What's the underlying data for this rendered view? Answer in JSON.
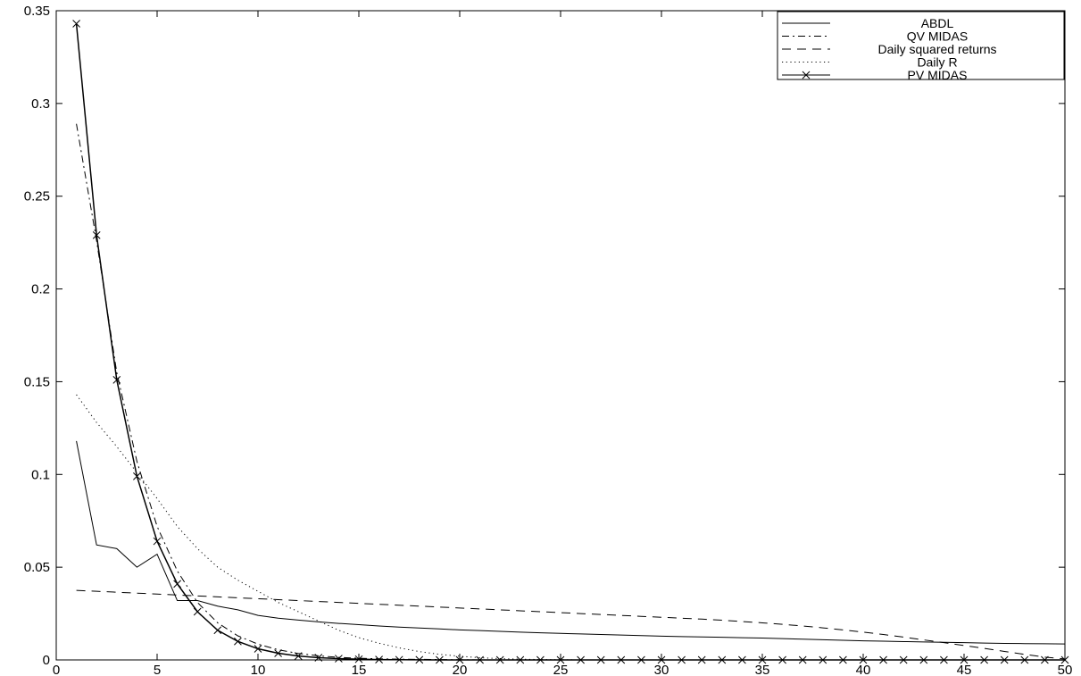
{
  "chart_data": {
    "type": "line",
    "title": "",
    "xlabel": "",
    "ylabel": "",
    "xlim": [
      0,
      50
    ],
    "ylim": [
      0,
      0.35
    ],
    "xticks": [
      0,
      5,
      10,
      15,
      20,
      25,
      30,
      35,
      40,
      45,
      50
    ],
    "yticks": [
      0,
      0.05,
      0.1,
      0.15,
      0.2,
      0.25,
      0.3,
      0.35
    ],
    "xtick_labels": [
      "0",
      "5",
      "10",
      "15",
      "20",
      "25",
      "30",
      "35",
      "40",
      "45",
      "50"
    ],
    "ytick_labels": [
      "0",
      "0.05",
      "0.1",
      "0.15",
      "0.2",
      "0.25",
      "0.3",
      "0.35"
    ],
    "grid": false,
    "legend_position": "top-right",
    "x": [
      1,
      2,
      3,
      4,
      5,
      6,
      7,
      8,
      9,
      10,
      11,
      12,
      13,
      14,
      15,
      16,
      17,
      18,
      19,
      20,
      21,
      22,
      23,
      24,
      25,
      26,
      27,
      28,
      29,
      30,
      31,
      32,
      33,
      34,
      35,
      36,
      37,
      38,
      39,
      40,
      41,
      42,
      43,
      44,
      45,
      46,
      47,
      48,
      49,
      50
    ],
    "series": [
      {
        "name": "ABDL",
        "style": "solid",
        "marker": "none",
        "values": [
          0.118,
          0.062,
          0.06,
          0.05,
          0.057,
          0.032,
          0.032,
          0.029,
          0.027,
          0.024,
          0.0225,
          0.0215,
          0.0205,
          0.0197,
          0.019,
          0.0183,
          0.0177,
          0.0172,
          0.0167,
          0.0162,
          0.0158,
          0.0154,
          0.015,
          0.0146,
          0.0143,
          0.014,
          0.0137,
          0.0134,
          0.0131,
          0.0128,
          0.0126,
          0.0124,
          0.0122,
          0.012,
          0.0118,
          0.0115,
          0.0112,
          0.0109,
          0.0106,
          0.0103,
          0.0101,
          0.0099,
          0.0097,
          0.0095,
          0.0093,
          0.0091,
          0.0089,
          0.0088,
          0.0087,
          0.0086
        ]
      },
      {
        "name": "QV MIDAS",
        "style": "dashdot",
        "marker": "none",
        "values": [
          0.289,
          0.226,
          0.155,
          0.107,
          0.072,
          0.048,
          0.031,
          0.02,
          0.013,
          0.0085,
          0.0055,
          0.0035,
          0.0022,
          0.0014,
          0.0009,
          0.0006,
          0.0004,
          0.0003,
          0.0002,
          0.0001,
          0,
          0,
          0,
          0,
          0,
          0,
          0,
          0,
          0,
          0,
          0,
          0,
          0,
          0,
          0,
          0,
          0,
          0,
          0,
          0,
          0,
          0,
          0,
          0,
          0,
          0,
          0,
          0,
          0,
          0
        ]
      },
      {
        "name": "Daily squared returns",
        "style": "dashed",
        "marker": "none",
        "values": [
          0.0375,
          0.037,
          0.0365,
          0.036,
          0.0355,
          0.035,
          0.0345,
          0.034,
          0.0335,
          0.033,
          0.0325,
          0.032,
          0.0315,
          0.031,
          0.0305,
          0.03,
          0.0295,
          0.029,
          0.0285,
          0.028,
          0.0275,
          0.027,
          0.0265,
          0.026,
          0.0255,
          0.025,
          0.0245,
          0.024,
          0.0235,
          0.023,
          0.0225,
          0.022,
          0.0214,
          0.0207,
          0.02,
          0.0192,
          0.0183,
          0.0173,
          0.0162,
          0.015,
          0.0137,
          0.0123,
          0.0108,
          0.0093,
          0.0078,
          0.0062,
          0.0046,
          0.003,
          0.0015,
          0.0005
        ]
      },
      {
        "name": "Daily R",
        "style": "dotted",
        "marker": "none",
        "values": [
          0.143,
          0.128,
          0.115,
          0.101,
          0.087,
          0.072,
          0.06,
          0.05,
          0.043,
          0.037,
          0.031,
          0.026,
          0.021,
          0.016,
          0.012,
          0.009,
          0.0065,
          0.0045,
          0.003,
          0.002,
          0.0012,
          0.0007,
          0.0004,
          0.0002,
          0.0001,
          0,
          0,
          0,
          0,
          0,
          0,
          0,
          0,
          0,
          0,
          0,
          0,
          0,
          0,
          0,
          0,
          0,
          0,
          0,
          0,
          0,
          0,
          0,
          0,
          0
        ]
      },
      {
        "name": "PV MIDAS",
        "style": "solid",
        "marker": "x",
        "values": [
          0.343,
          0.229,
          0.151,
          0.099,
          0.064,
          0.041,
          0.026,
          0.016,
          0.01,
          0.006,
          0.0036,
          0.0021,
          0.0012,
          0.0007,
          0.0004,
          0.0002,
          0.0001,
          5e-05,
          0,
          0,
          0,
          0,
          0,
          0,
          0,
          0,
          0,
          0,
          0,
          0,
          0,
          0,
          0,
          0,
          0,
          0,
          0,
          0,
          0,
          0,
          0,
          0,
          0,
          0,
          0,
          0,
          0,
          0,
          0,
          0
        ]
      }
    ]
  }
}
